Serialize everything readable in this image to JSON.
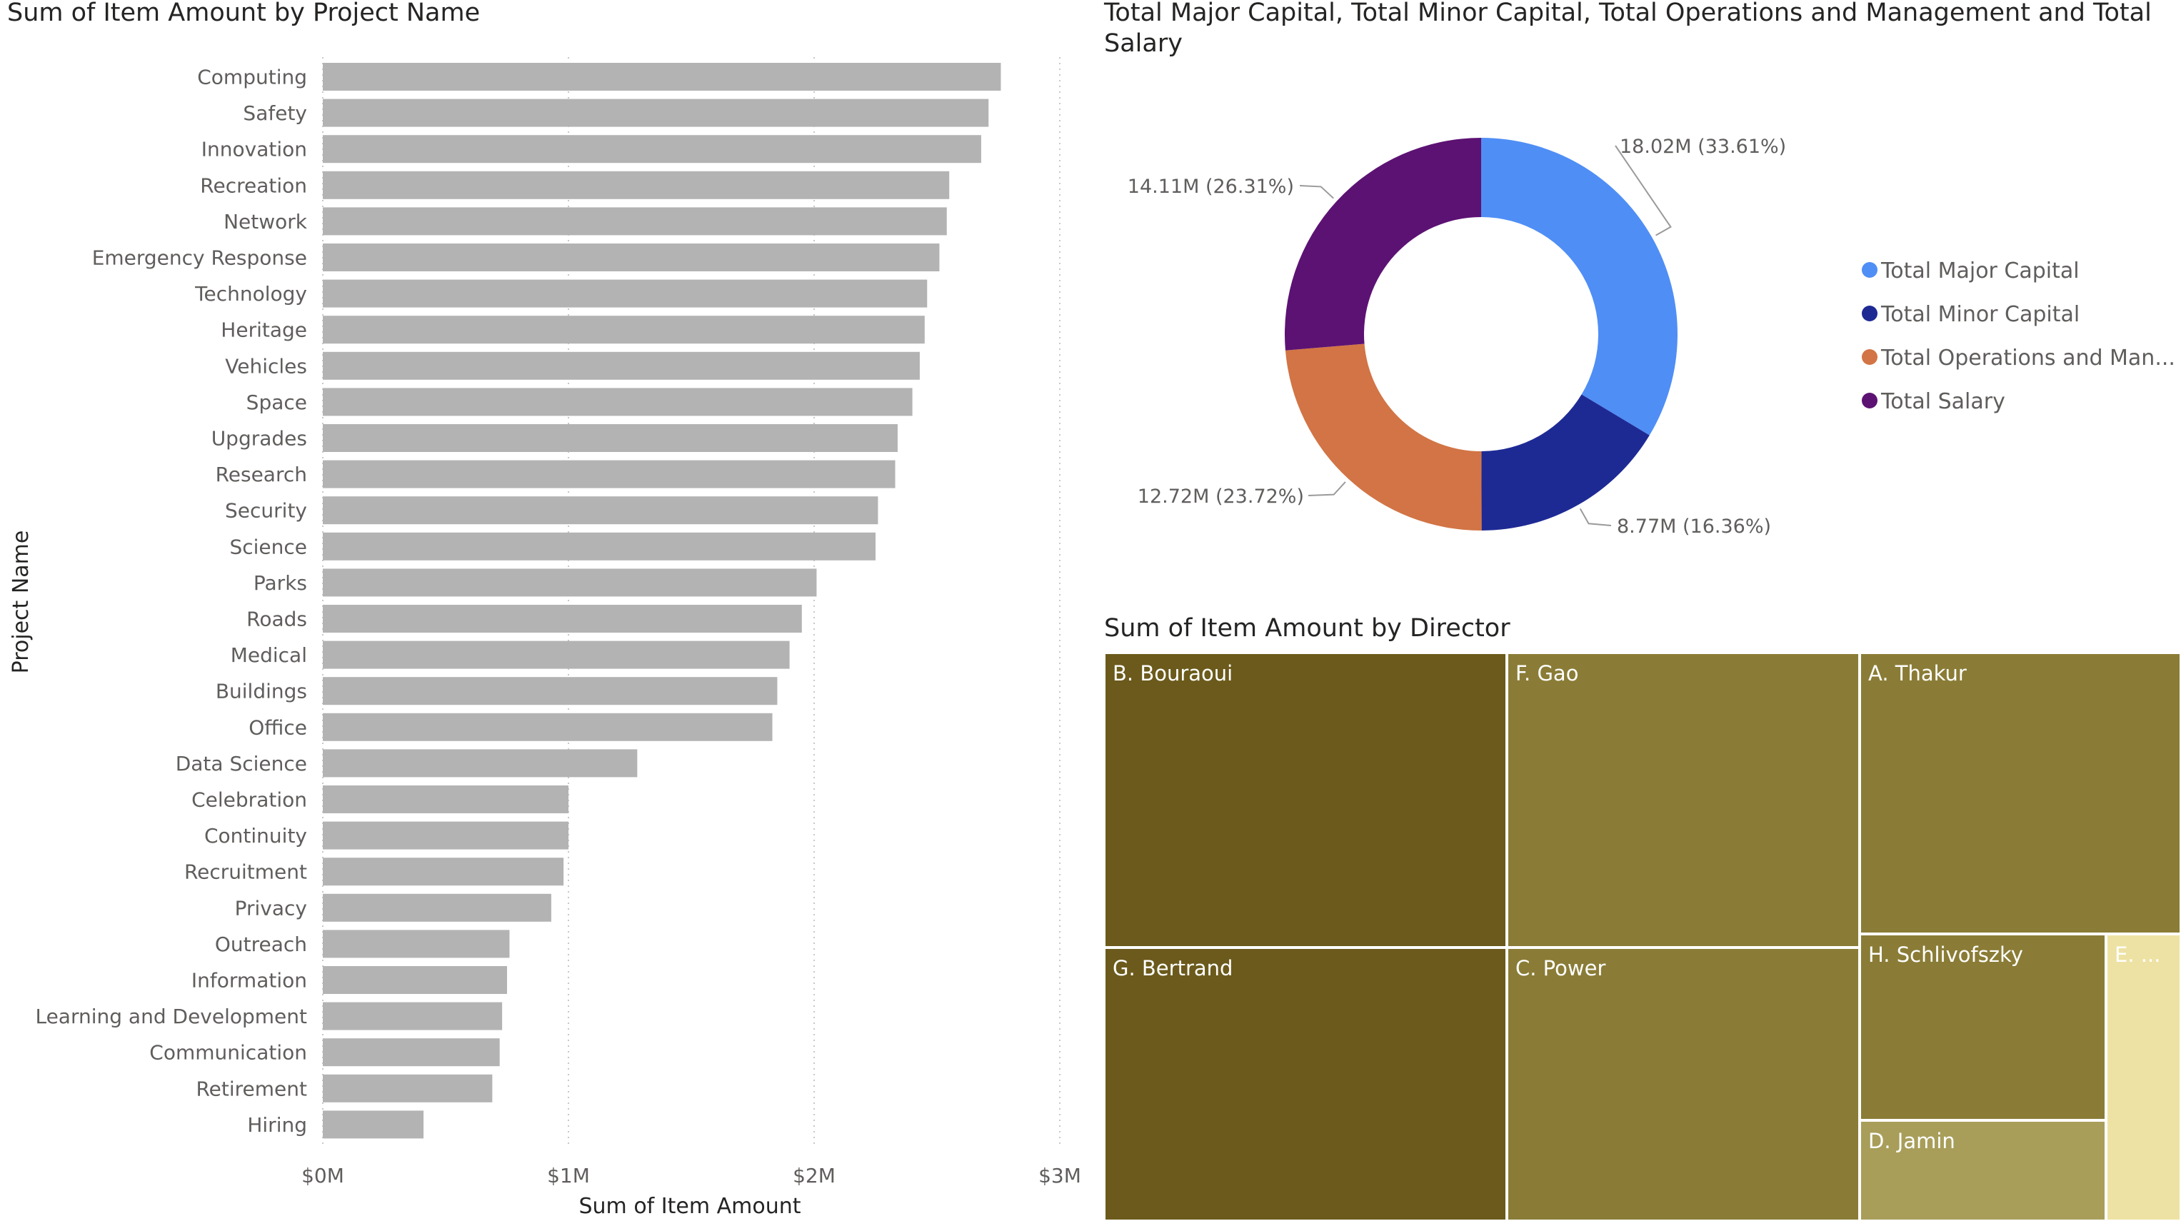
{
  "bar_chart": {
    "title": "Sum of Item Amount by Project Name",
    "bar_color": "#b3b3b3"
  },
  "donut_chart": {
    "title": "Total Major Capital, Total Minor Capital, Total Operations and Management and Total Salary",
    "title_lines": [
      "Total Major Capital, Total Minor Capital, Total Operations and Management and Total",
      "Salary"
    ]
  },
  "treemap": {
    "title": "Sum of Item Amount by Director"
  },
  "chart_data": [
    {
      "type": "bar",
      "orientation": "horizontal",
      "title": "Sum of Item Amount by Project Name",
      "xlabel": "Sum of Item Amount",
      "ylabel": "Project Name",
      "xlim": [
        0,
        3000000
      ],
      "xticks": [
        "$0M",
        "$1M",
        "$2M",
        "$3M"
      ],
      "grid": true,
      "categories": [
        "Computing",
        "Safety",
        "Innovation",
        "Recreation",
        "Network",
        "Emergency Response",
        "Technology",
        "Heritage",
        "Vehicles",
        "Space",
        "Upgrades",
        "Research",
        "Security",
        "Science",
        "Parks",
        "Roads",
        "Medical",
        "Buildings",
        "Office",
        "Data Science",
        "Celebration",
        "Continuity",
        "Recruitment",
        "Privacy",
        "Outreach",
        "Information",
        "Learning and Development",
        "Communication",
        "Retirement",
        "Hiring"
      ],
      "values": [
        2760000,
        2710000,
        2680000,
        2550000,
        2540000,
        2510000,
        2460000,
        2450000,
        2430000,
        2400000,
        2340000,
        2330000,
        2260000,
        2250000,
        2010000,
        1950000,
        1900000,
        1850000,
        1830000,
        1280000,
        1000000,
        1000000,
        980000,
        930000,
        760000,
        750000,
        730000,
        720000,
        690000,
        410000
      ]
    },
    {
      "type": "pie",
      "variant": "donut",
      "title": "Total Major Capital, Total Minor Capital, Total Operations and Management and Total Salary",
      "legend_position": "right",
      "slices": [
        {
          "name": "Total Major Capital",
          "legend_label": "Total Major Capital",
          "value": 18.02,
          "percent": 33.61,
          "data_label": "18.02M (33.61%)",
          "color": "#4f8ef5"
        },
        {
          "name": "Total Minor Capital",
          "legend_label": "Total Minor Capital",
          "value": 8.77,
          "percent": 16.36,
          "data_label": "8.77M (16.36%)",
          "color": "#1e2a94"
        },
        {
          "name": "Total Operations and Management",
          "legend_label": "Total Operations and Man...",
          "value": 12.72,
          "percent": 23.72,
          "data_label": "12.72M (23.72%)",
          "color": "#d27445"
        },
        {
          "name": "Total Salary",
          "legend_label": "Total Salary",
          "value": 14.11,
          "percent": 26.31,
          "data_label": "14.11M (26.31%)",
          "color": "#5c1273"
        }
      ]
    },
    {
      "type": "treemap",
      "title": "Sum of Item Amount by Director",
      "items": [
        {
          "label": "B. Bouraoui",
          "color": "#6b5a1b"
        },
        {
          "label": "G. Bertrand",
          "color": "#6b5a1b"
        },
        {
          "label": "F. Gao",
          "color": "#8a7c36"
        },
        {
          "label": "C. Power",
          "color": "#8a7c36"
        },
        {
          "label": "A. Thakur",
          "color": "#8a7c36"
        },
        {
          "label": "H. Schlivofszky",
          "color": "#8a7c36"
        },
        {
          "label": "D. Jamin",
          "color": "#a89e5a"
        },
        {
          "label": "E. ...",
          "color": "#ede2a3"
        }
      ]
    }
  ]
}
